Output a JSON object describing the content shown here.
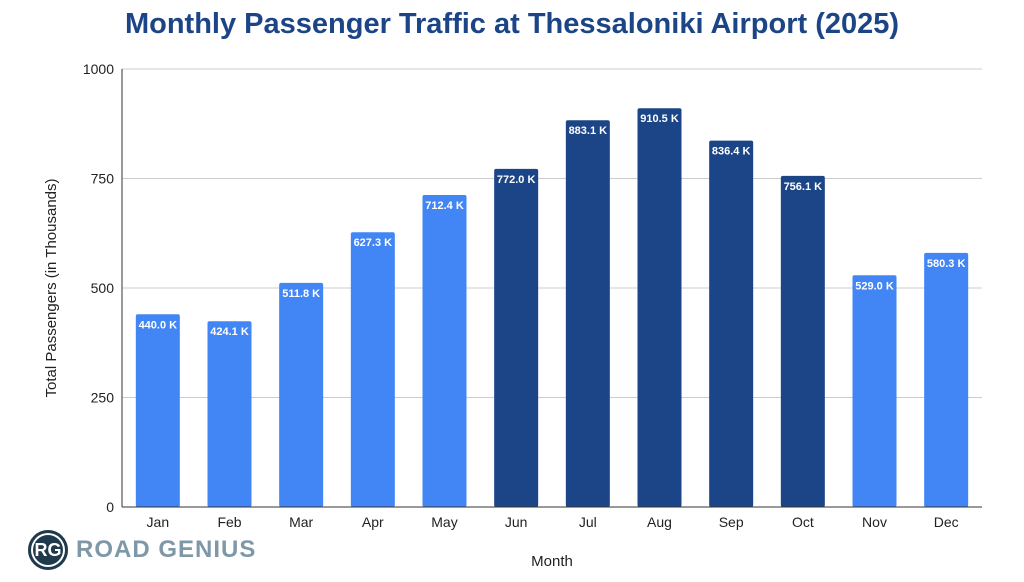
{
  "chart_data": {
    "type": "bar",
    "title": "Monthly Passenger Traffic at Thessaloniki Airport (2025)",
    "xlabel": "Month",
    "ylabel": "Total Passengers (in Thousands)",
    "ylim": [
      0,
      1000
    ],
    "yticks": [
      0,
      250,
      500,
      750,
      1000
    ],
    "grid": true,
    "categories": [
      "Jan",
      "Feb",
      "Mar",
      "Apr",
      "May",
      "Jun",
      "Jul",
      "Aug",
      "Sep",
      "Oct",
      "Nov",
      "Dec"
    ],
    "values": [
      440.0,
      424.1,
      511.8,
      627.3,
      712.4,
      772.0,
      883.1,
      910.5,
      836.4,
      756.1,
      529.0,
      580.3
    ],
    "data_labels": [
      "440.0 K",
      "424.1 K",
      "511.8 K",
      "627.3 K",
      "712.4 K",
      "772.0 K",
      "883.1 K",
      "910.5 K",
      "836.4 K",
      "756.1 K",
      "529.0 K",
      "580.3 K"
    ],
    "bar_colors": [
      "#4285f4",
      "#4285f4",
      "#4285f4",
      "#4285f4",
      "#4285f4",
      "#1c4587",
      "#1c4587",
      "#1c4587",
      "#1c4587",
      "#1c4587",
      "#4285f4",
      "#4285f4"
    ]
  },
  "logo": {
    "initials": "RG",
    "text": "ROAD GENIUS"
  }
}
